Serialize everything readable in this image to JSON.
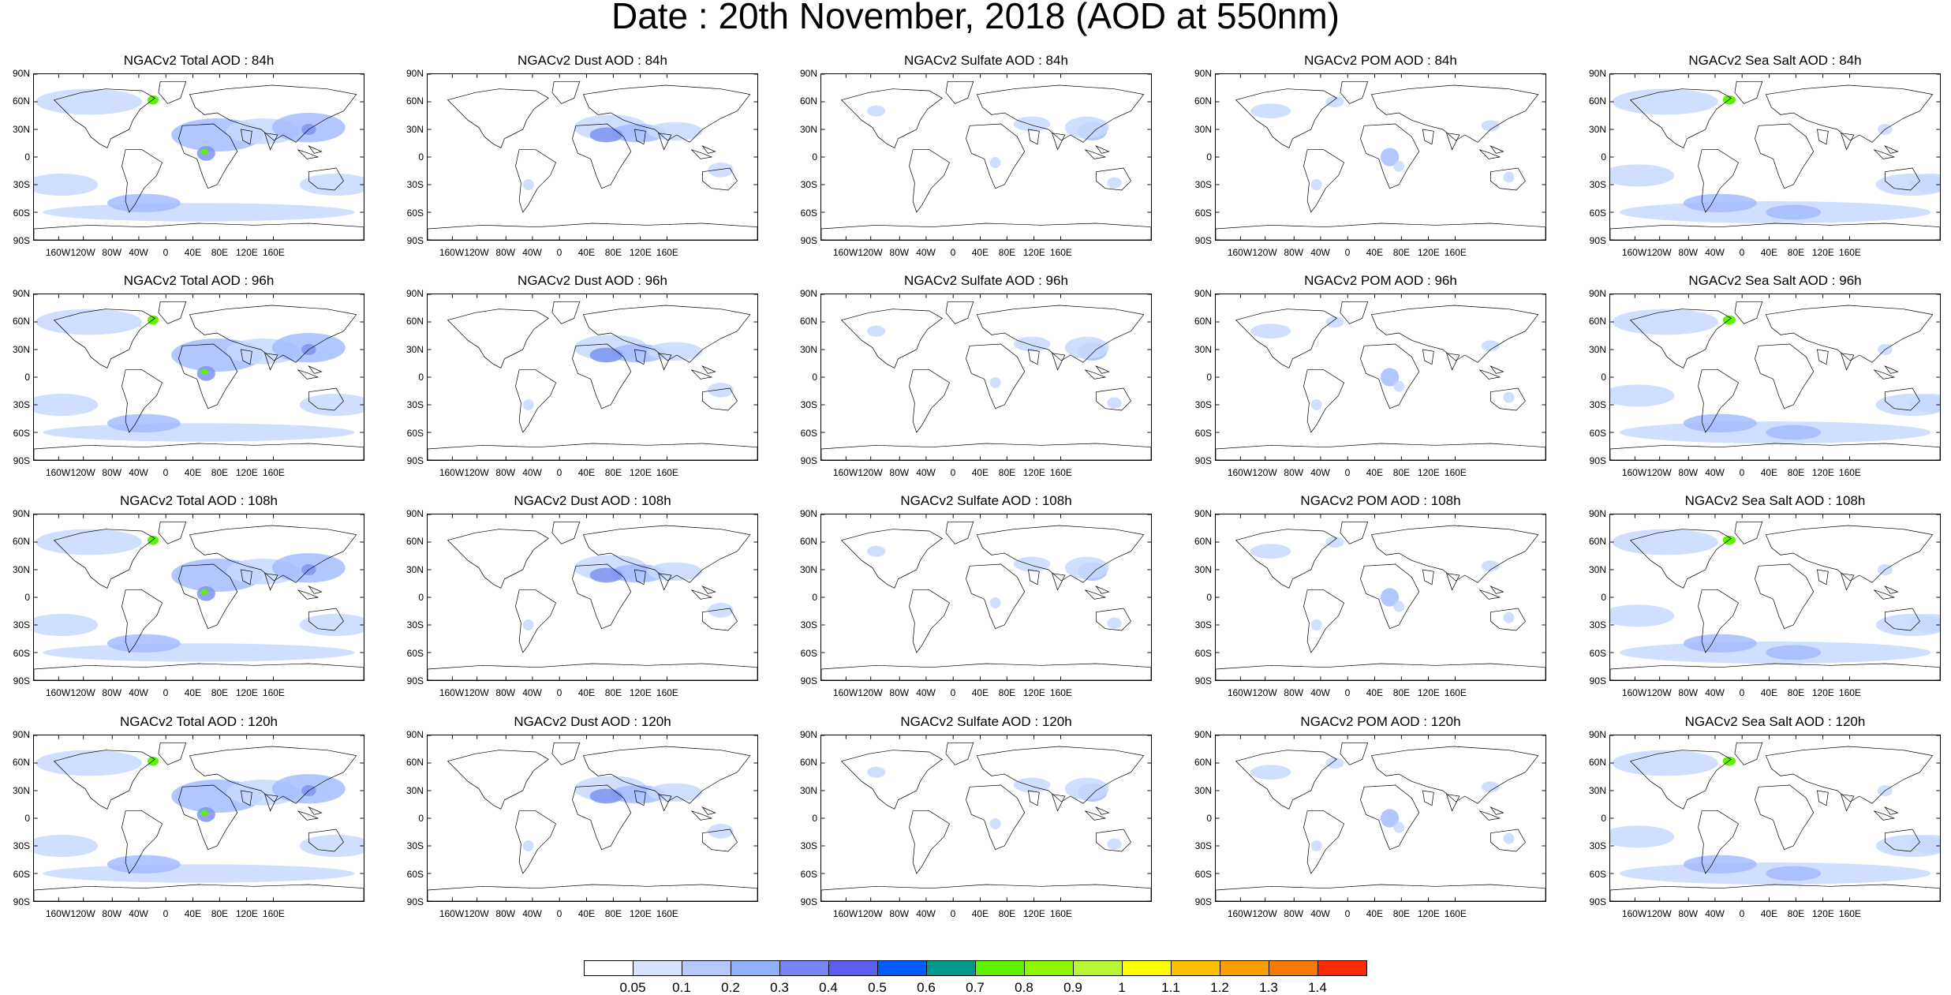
{
  "title": "Date : 20th November, 2018 (AOD at 550nm)",
  "lat_labels": [
    "90N",
    "60N",
    "30N",
    "0",
    "30S",
    "60S",
    "90S"
  ],
  "lon_labels": [
    "160W",
    "120W",
    "80W",
    "40W",
    "0",
    "40E",
    "80E",
    "120E",
    "160E"
  ],
  "columns": [
    {
      "type": "total",
      "label": "NGACv2 Total AOD"
    },
    {
      "type": "dust",
      "label": "NGACv2 Dust AOD"
    },
    {
      "type": "sulfate",
      "label": "NGACv2 Sulfate AOD"
    },
    {
      "type": "pom",
      "label": "NGACv2 POM AOD"
    },
    {
      "type": "seasalt",
      "label": "NGACv2 Sea Salt AOD"
    }
  ],
  "panels": [
    [
      "NGACv2 Total AOD : 84h",
      "NGACv2 Dust AOD : 84h",
      "NGACv2 Sulfate AOD : 84h",
      "NGACv2 POM AOD : 84h",
      "NGACv2 Sea Salt AOD : 84h"
    ],
    [
      "NGACv2 Total AOD : 96h",
      "NGACv2 Dust AOD : 96h",
      "NGACv2 Sulfate AOD : 96h",
      "NGACv2 POM AOD : 96h",
      "NGACv2 Sea Salt AOD : 96h"
    ],
    [
      "NGACv2 Total AOD : 108h",
      "NGACv2 Dust AOD : 108h",
      "NGACv2 Sulfate AOD : 108h",
      "NGACv2 POM AOD : 108h",
      "NGACv2 Sea Salt AOD : 108h"
    ],
    [
      "NGACv2 Total AOD : 120h",
      "NGACv2 Dust AOD : 120h",
      "NGACv2 Sulfate AOD : 120h",
      "NGACv2 POM AOD : 120h",
      "NGACv2 Sea Salt  AOD : 120h"
    ]
  ],
  "colorbar": {
    "labels": [
      "0.05",
      "0.1",
      "0.2",
      "0.3",
      "0.4",
      "0.5",
      "0.6",
      "0.7",
      "0.8",
      "0.9",
      "1",
      "1.1",
      "1.2",
      "1.3",
      "1.4"
    ],
    "colors": [
      "#ffffff",
      "#d6e2ff",
      "#b5c9ff",
      "#8fb1fe",
      "#7485f4",
      "#5d5ef0",
      "#005cff",
      "#00998c",
      "#5ef200",
      "#8ef700",
      "#b8f735",
      "#ffff00",
      "#fbc100",
      "#fb9e00",
      "#f77a00",
      "#ff2a00"
    ]
  },
  "map_colors": {
    "coast": "#000000",
    "light": "#c8d8ff",
    "mid": "#a4bcff",
    "strong": "#7d94f0",
    "hot_green": "#5ef200",
    "hot_yellow": "#ffff00"
  }
}
